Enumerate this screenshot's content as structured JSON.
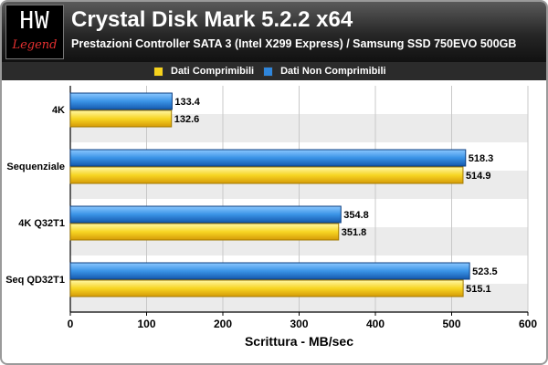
{
  "logo": {
    "mark": "HW",
    "word": "Legend"
  },
  "chart_data": {
    "type": "bar",
    "orientation": "horizontal",
    "title": "Crystal Disk Mark 5.2.2 x64",
    "subtitle": "Prestazioni Controller SATA 3 (Intel X299 Express) / Samsung SSD 750EVO 500GB",
    "xlabel": "Scrittura - MB/sec",
    "ylabel": "",
    "xlim": [
      0,
      600
    ],
    "xticks": [
      0,
      100,
      200,
      300,
      400,
      500,
      600
    ],
    "grid": true,
    "legend_position": "top",
    "categories": [
      "4K",
      "Sequenziale",
      "4K Q32T1",
      "Seq QD32T1"
    ],
    "series": [
      {
        "name": "Dati Comprimibili",
        "color": "#f6d21c",
        "values": [
          132.6,
          514.9,
          351.8,
          515.1
        ]
      },
      {
        "name": "Dati Non Comprimibili",
        "color": "#2f86dc",
        "values": [
          133.4,
          518.3,
          354.8,
          523.5
        ]
      }
    ]
  }
}
